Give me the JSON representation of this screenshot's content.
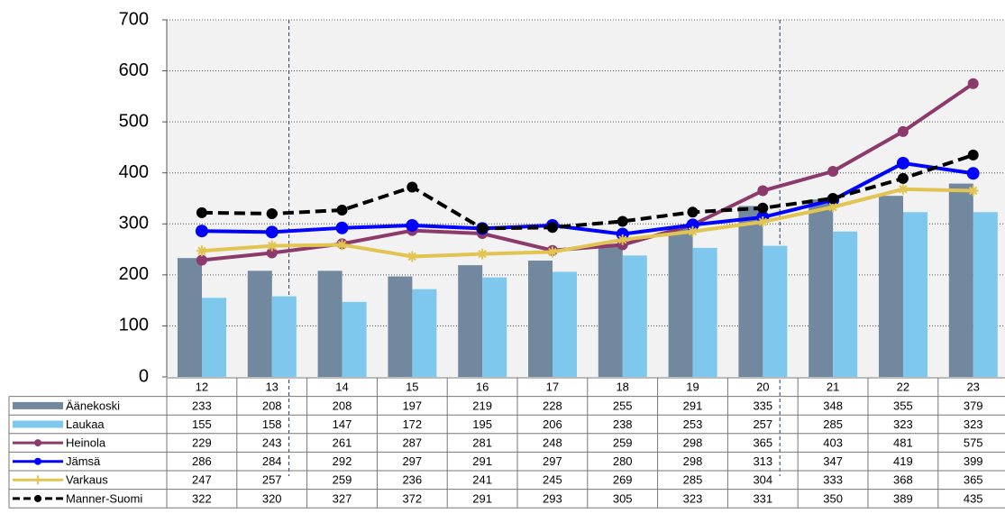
{
  "chart_data": {
    "type": "bar_line_table",
    "categories": [
      "12",
      "13",
      "14",
      "15",
      "16",
      "17",
      "18",
      "19",
      "20",
      "21",
      "22",
      "23"
    ],
    "ylim": [
      0,
      700
    ],
    "yticks": [
      0,
      100,
      200,
      300,
      400,
      500,
      600,
      700
    ],
    "grid": true,
    "series": [
      {
        "name": "Äänekoski",
        "type": "bar",
        "color": "#72889e",
        "values": [
          233,
          208,
          208,
          197,
          219,
          228,
          255,
          291,
          335,
          348,
          355,
          379
        ]
      },
      {
        "name": "Laukaa",
        "type": "bar",
        "color": "#7ec8ee",
        "values": [
          155,
          158,
          147,
          172,
          195,
          206,
          238,
          253,
          257,
          285,
          323,
          323
        ]
      },
      {
        "name": "Heinola",
        "type": "line",
        "marker": "circle",
        "color": "#8b3a6b",
        "values": [
          229,
          243,
          261,
          287,
          281,
          248,
          259,
          298,
          365,
          403,
          481,
          575
        ]
      },
      {
        "name": "Jämsä",
        "type": "line",
        "marker": "circle",
        "color": "#0000ff",
        "values": [
          286,
          284,
          292,
          297,
          291,
          297,
          280,
          298,
          313,
          347,
          419,
          399
        ]
      },
      {
        "name": "Varkaus",
        "type": "line",
        "marker": "star",
        "color": "#e2c452",
        "values": [
          247,
          257,
          259,
          236,
          241,
          245,
          269,
          285,
          304,
          333,
          368,
          365
        ]
      },
      {
        "name": "Manner-Suomi",
        "type": "line",
        "marker": "circle",
        "dashed": true,
        "color": "#000000",
        "values": [
          322,
          320,
          327,
          372,
          291,
          293,
          305,
          323,
          331,
          350,
          389,
          435
        ]
      }
    ]
  }
}
